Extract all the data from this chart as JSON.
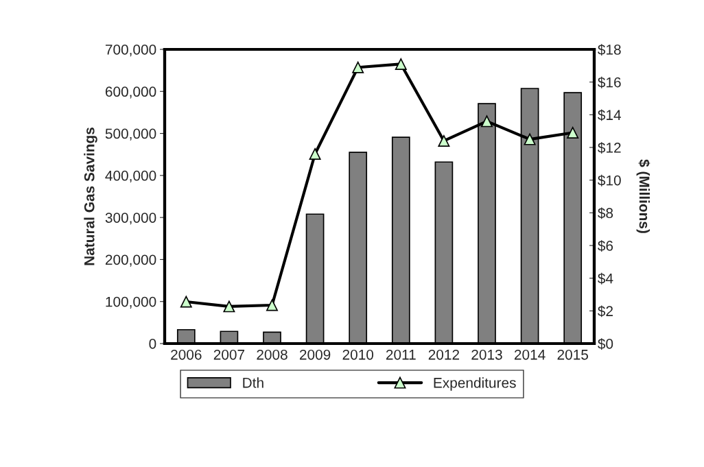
{
  "chart_data": {
    "type": "bar",
    "ylabel": "Natural Gas Savings",
    "y2label": "$ (Millions)",
    "categories": [
      "2006",
      "2007",
      "2008",
      "2009",
      "2010",
      "2011",
      "2012",
      "2013",
      "2014",
      "2015"
    ],
    "series": [
      {
        "name": "Dth",
        "color": "#808080",
        "values": [
          33000,
          29000,
          27000,
          308000,
          455000,
          491000,
          432000,
          571000,
          607000,
          597000
        ]
      },
      {
        "name": "Expenditures",
        "type": "line",
        "axis": "y2",
        "color": "#000000",
        "marker": "triangle",
        "values": [
          2.56,
          2.27,
          2.35,
          11.6,
          16.9,
          17.1,
          12.4,
          13.6,
          12.5,
          12.9
        ]
      }
    ],
    "ylim": [
      0,
      700000
    ],
    "yticks": [
      {
        "value": 0,
        "label": "0"
      },
      {
        "value": 100000,
        "label": "100,000"
      },
      {
        "value": 200000,
        "label": "200,000"
      },
      {
        "value": 300000,
        "label": "300,000"
      },
      {
        "value": 400000,
        "label": "400,000"
      },
      {
        "value": 500000,
        "label": "500,000"
      },
      {
        "value": 600000,
        "label": "600,000"
      },
      {
        "value": 700000,
        "label": "700,000"
      }
    ],
    "y2lim": [
      0,
      18
    ],
    "y2ticks": [
      {
        "value": 0,
        "label": "$0"
      },
      {
        "value": 2,
        "label": "$2"
      },
      {
        "value": 4,
        "label": "$4"
      },
      {
        "value": 6,
        "label": "$6"
      },
      {
        "value": 8,
        "label": "$8"
      },
      {
        "value": 10,
        "label": "$10"
      },
      {
        "value": 12,
        "label": "$12"
      },
      {
        "value": 14,
        "label": "$14"
      },
      {
        "value": 16,
        "label": "$16"
      },
      {
        "value": 18,
        "label": "$18"
      }
    ],
    "grid": false,
    "legend": "bottom"
  }
}
